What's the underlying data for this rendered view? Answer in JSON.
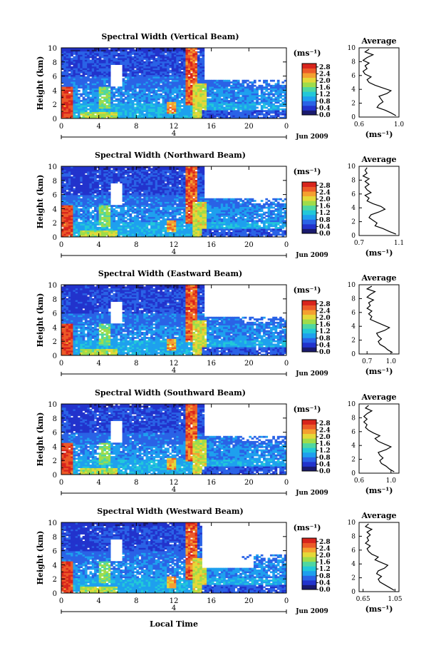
{
  "figure": {
    "colorbar_unit": "(ms⁻¹)",
    "colorbar_ticks": [
      "0.0",
      "0.4",
      "0.8",
      "1.2",
      "1.6",
      "2.0",
      "2.4",
      "2.8"
    ],
    "colorbar_range": [
      0.0,
      3.0
    ],
    "x_ticks": [
      "0",
      "4",
      "8",
      "12",
      "16",
      "20",
      "0"
    ],
    "x_range_hours": [
      0,
      24
    ],
    "y_ticks": [
      "0",
      "2",
      "4",
      "6",
      "8",
      "10"
    ],
    "y_range_km": [
      0,
      10
    ],
    "ylabel": "Height (km)",
    "day_marker": "4",
    "month_label": "Jun 2009",
    "xlabel": "Local Time",
    "avg_title": "Average",
    "avg_xlabel": "(ms⁻¹)",
    "colormap": [
      "#1a1a6e",
      "#2233cc",
      "#2a63e6",
      "#1ea0ee",
      "#22c8d8",
      "#4fd7a0",
      "#9fdc4a",
      "#e4d838",
      "#f4a030",
      "#ec5a28",
      "#d8241c"
    ]
  },
  "chart_data": [
    {
      "type": "heatmap",
      "title": "Spectral Width (Vertical Beam)",
      "xlabel": "",
      "ylabel": "Height (km)",
      "xlim": [
        0,
        24
      ],
      "ylim": [
        0,
        10
      ],
      "average": {
        "title": "Average",
        "xlabel": "(ms⁻¹)",
        "xlim": [
          0.6,
          1.0
        ],
        "x_ticks": [
          "0.6",
          "1.0"
        ],
        "y_ticks": [
          "0",
          "2",
          "4",
          "6",
          "8",
          "10"
        ],
        "height_km": [
          0.2,
          0.6,
          1.0,
          1.4,
          1.8,
          2.2,
          2.6,
          3.0,
          3.4,
          3.8,
          4.2,
          4.6,
          5.0,
          5.4,
          5.8,
          6.2,
          6.6,
          7.0,
          7.4,
          7.8,
          8.2,
          8.6,
          9.0,
          9.4,
          9.8
        ],
        "width_ms": [
          0.97,
          0.92,
          0.86,
          0.78,
          0.8,
          0.84,
          0.82,
          0.8,
          0.88,
          0.92,
          0.84,
          0.76,
          0.7,
          0.68,
          0.72,
          0.66,
          0.64,
          0.68,
          0.66,
          0.7,
          0.64,
          0.68,
          0.74,
          0.66,
          0.7
        ]
      }
    },
    {
      "type": "heatmap",
      "title": "Spectral Width (Northward Beam)",
      "xlabel": "",
      "ylabel": "Height (km)",
      "xlim": [
        0,
        24
      ],
      "ylim": [
        0,
        10
      ],
      "average": {
        "title": "Average",
        "xlabel": "(ms⁻¹)",
        "xlim": [
          0.7,
          1.1
        ],
        "x_ticks": [
          "0.7",
          "1.1"
        ],
        "y_ticks": [
          "0",
          "2",
          "4",
          "6",
          "8",
          "10"
        ],
        "height_km": [
          0.2,
          0.6,
          1.0,
          1.4,
          1.8,
          2.2,
          2.6,
          3.0,
          3.4,
          3.8,
          4.2,
          4.6,
          5.0,
          5.4,
          5.8,
          6.2,
          6.6,
          7.0,
          7.4,
          7.8,
          8.2,
          8.6,
          9.0,
          9.4,
          9.8
        ],
        "width_ms": [
          1.07,
          1.0,
          0.94,
          0.86,
          0.88,
          0.84,
          0.8,
          0.82,
          0.9,
          0.96,
          0.92,
          0.84,
          0.78,
          0.8,
          0.76,
          0.82,
          0.78,
          0.76,
          0.8,
          0.76,
          0.8,
          0.74,
          0.78,
          0.76,
          0.78
        ]
      }
    },
    {
      "type": "heatmap",
      "title": "Spectral Width (Eastward Beam)",
      "xlabel": "",
      "ylabel": "Height (km)",
      "xlim": [
        0,
        24
      ],
      "ylim": [
        0,
        10
      ],
      "average": {
        "title": "Average",
        "xlabel": "(ms⁻¹)",
        "xlim": [
          0.6,
          1.1
        ],
        "x_ticks": [
          "0.7",
          "1.0"
        ],
        "y_ticks": [
          "0",
          "2",
          "4",
          "6",
          "8",
          "10"
        ],
        "height_km": [
          0.2,
          0.6,
          1.0,
          1.4,
          1.8,
          2.2,
          2.6,
          3.0,
          3.4,
          3.8,
          4.2,
          4.6,
          5.0,
          5.4,
          5.8,
          6.2,
          6.6,
          7.0,
          7.4,
          7.8,
          8.2,
          8.6,
          9.0,
          9.4,
          9.8
        ],
        "width_ms": [
          1.02,
          0.96,
          0.92,
          0.86,
          0.84,
          0.88,
          0.84,
          0.82,
          0.92,
          0.98,
          0.9,
          0.82,
          0.74,
          0.76,
          0.72,
          0.76,
          0.7,
          0.74,
          0.72,
          0.78,
          0.7,
          0.74,
          0.8,
          0.7,
          0.76
        ]
      }
    },
    {
      "type": "heatmap",
      "title": "Spectral Width (Southward Beam)",
      "xlabel": "",
      "ylabel": "Height (km)",
      "xlim": [
        0,
        24
      ],
      "ylim": [
        0,
        10
      ],
      "average": {
        "title": "Average",
        "xlabel": "(ms⁻¹)",
        "xlim": [
          0.6,
          1.1
        ],
        "x_ticks": [
          "0.6",
          "1.0"
        ],
        "y_ticks": [
          "0",
          "2",
          "4",
          "6",
          "8",
          "10"
        ],
        "height_km": [
          0.2,
          0.6,
          1.0,
          1.4,
          1.8,
          2.2,
          2.6,
          3.0,
          3.4,
          3.8,
          4.2,
          4.6,
          5.0,
          5.4,
          5.8,
          6.2,
          6.6,
          7.0,
          7.4,
          7.8,
          8.2,
          8.6,
          9.0,
          9.4,
          9.8
        ],
        "width_ms": [
          1.04,
          0.98,
          0.94,
          0.88,
          0.86,
          0.9,
          0.86,
          0.84,
          0.94,
          1.0,
          0.92,
          0.84,
          0.8,
          0.86,
          0.78,
          0.72,
          0.68,
          0.7,
          0.66,
          0.7,
          0.66,
          0.7,
          0.76,
          0.68,
          0.72
        ]
      }
    },
    {
      "type": "heatmap",
      "title": "Spectral Width (Westward Beam)",
      "xlabel": "Local Time",
      "ylabel": "Height (km)",
      "xlim": [
        0,
        24
      ],
      "ylim": [
        0,
        10
      ],
      "average": {
        "title": "Average",
        "xlabel": "(ms⁻¹)",
        "xlim": [
          0.6,
          1.1
        ],
        "x_ticks": [
          "0.65",
          "1.05"
        ],
        "y_ticks": [
          "0",
          "2",
          "4",
          "6",
          "8",
          "10"
        ],
        "height_km": [
          0.2,
          0.6,
          1.0,
          1.4,
          1.8,
          2.2,
          2.6,
          3.0,
          3.4,
          3.8,
          4.2,
          4.6,
          5.0,
          5.4,
          5.8,
          6.2,
          6.6,
          7.0,
          7.4,
          7.8,
          8.2,
          8.6,
          9.0,
          9.4,
          9.8
        ],
        "width_ms": [
          1.04,
          0.98,
          0.92,
          0.86,
          0.84,
          0.88,
          0.82,
          0.84,
          0.92,
          0.96,
          0.88,
          0.8,
          0.84,
          0.76,
          0.72,
          0.7,
          0.74,
          0.68,
          0.72,
          0.7,
          0.74,
          0.7,
          0.76,
          0.68,
          0.72
        ]
      }
    }
  ]
}
